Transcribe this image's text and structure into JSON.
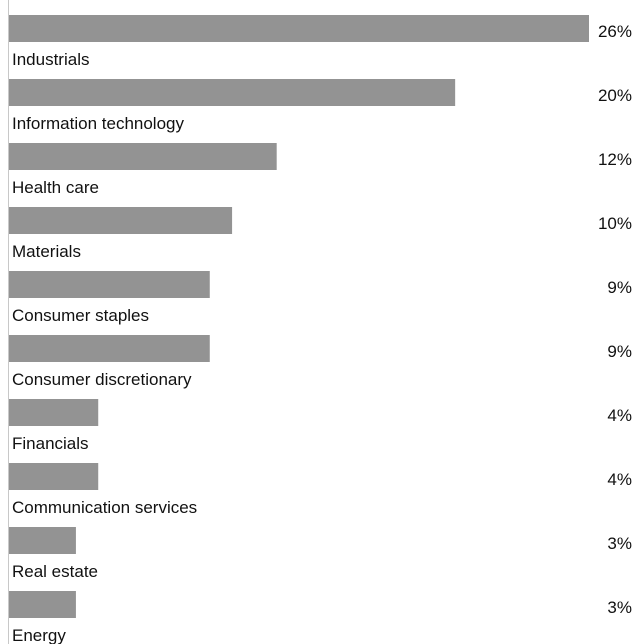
{
  "chart_data": {
    "type": "bar",
    "orientation": "horizontal",
    "categories": [
      "Industrials",
      "Information technology",
      "Health care",
      "Materials",
      "Consumer staples",
      "Consumer discretionary",
      "Financials",
      "Communication services",
      "Real estate",
      "Energy"
    ],
    "values": [
      26,
      20,
      12,
      10,
      9,
      9,
      4,
      4,
      3,
      3
    ],
    "value_labels": [
      "26%",
      "20%",
      "12%",
      "10%",
      "9%",
      "9%",
      "4%",
      "4%",
      "3%",
      "3%"
    ],
    "xlim": [
      0,
      26
    ],
    "grid": false,
    "legend": "none",
    "bar_color": "#939393"
  }
}
